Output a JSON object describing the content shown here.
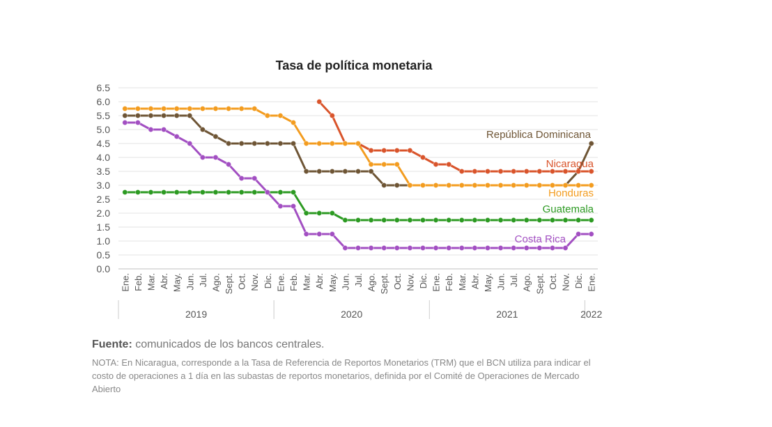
{
  "chart_data": {
    "type": "line",
    "title": "Tasa de política monetaria",
    "ylim": [
      0,
      6.5
    ],
    "yticks": [
      "0.0",
      "0.5",
      "1.0",
      "1.5",
      "2.0",
      "2.5",
      "3.0",
      "3.5",
      "4.0",
      "4.5",
      "5.0",
      "5.5",
      "6.0",
      "6.5"
    ],
    "grid": true,
    "categories": [
      "Ene.",
      "Feb.",
      "Mar.",
      "Abr.",
      "May.",
      "Jun.",
      "Jul.",
      "Ago.",
      "Sept.",
      "Oct.",
      "Nov.",
      "Dic.",
      "Ene.",
      "Feb.",
      "Mar.",
      "Abr.",
      "May.",
      "Jun.",
      "Jul.",
      "Ago.",
      "Sept.",
      "Oct.",
      "Nov.",
      "Dic.",
      "Ene.",
      "Feb.",
      "Mar.",
      "Abr.",
      "May.",
      "Jun.",
      "Jul.",
      "Ago.",
      "Sept.",
      "Oct.",
      "Nov.",
      "Dic.",
      "Ene."
    ],
    "years": [
      {
        "label": "2019",
        "start": 0,
        "end": 11
      },
      {
        "label": "2020",
        "start": 12,
        "end": 23
      },
      {
        "label": "2021",
        "start": 24,
        "end": 35
      },
      {
        "label": "2022",
        "start": 36,
        "end": 36
      }
    ],
    "series": [
      {
        "name": "República Dominicana",
        "color": "#6e5535",
        "values": [
          5.5,
          5.5,
          5.5,
          5.5,
          5.5,
          5.5,
          5.0,
          4.75,
          4.5,
          4.5,
          4.5,
          4.5,
          4.5,
          4.5,
          3.5,
          3.5,
          3.5,
          3.5,
          3.5,
          3.5,
          3.0,
          3.0,
          3.0,
          3.0,
          3.0,
          3.0,
          3.0,
          3.0,
          3.0,
          3.0,
          3.0,
          3.0,
          3.0,
          3.0,
          3.0,
          3.5,
          4.5
        ]
      },
      {
        "name": "Nicaragua",
        "color": "#d9542b",
        "values": [
          null,
          null,
          null,
          null,
          null,
          null,
          null,
          null,
          null,
          null,
          null,
          null,
          null,
          null,
          null,
          6.0,
          5.5,
          4.5,
          4.5,
          4.25,
          4.25,
          4.25,
          4.25,
          4.0,
          3.75,
          3.75,
          3.5,
          3.5,
          3.5,
          3.5,
          3.5,
          3.5,
          3.5,
          3.5,
          3.5,
          3.5,
          3.5
        ]
      },
      {
        "name": "Honduras",
        "color": "#f39c1f",
        "values": [
          5.75,
          5.75,
          5.75,
          5.75,
          5.75,
          5.75,
          5.75,
          5.75,
          5.75,
          5.75,
          5.75,
          5.5,
          5.5,
          5.25,
          4.5,
          4.5,
          4.5,
          4.5,
          4.5,
          3.75,
          3.75,
          3.75,
          3.0,
          3.0,
          3.0,
          3.0,
          3.0,
          3.0,
          3.0,
          3.0,
          3.0,
          3.0,
          3.0,
          3.0,
          3.0,
          3.0,
          3.0
        ]
      },
      {
        "name": "Guatemala",
        "color": "#2c9a22",
        "values": [
          2.75,
          2.75,
          2.75,
          2.75,
          2.75,
          2.75,
          2.75,
          2.75,
          2.75,
          2.75,
          2.75,
          2.75,
          2.75,
          2.75,
          2.0,
          2.0,
          2.0,
          1.75,
          1.75,
          1.75,
          1.75,
          1.75,
          1.75,
          1.75,
          1.75,
          1.75,
          1.75,
          1.75,
          1.75,
          1.75,
          1.75,
          1.75,
          1.75,
          1.75,
          1.75,
          1.75,
          1.75
        ]
      },
      {
        "name": "Costa Rica",
        "color": "#a24fc2",
        "values": [
          5.25,
          5.25,
          5.0,
          5.0,
          4.75,
          4.5,
          4.0,
          4.0,
          3.75,
          3.25,
          3.25,
          2.75,
          2.25,
          2.25,
          1.25,
          1.25,
          1.25,
          0.75,
          0.75,
          0.75,
          0.75,
          0.75,
          0.75,
          0.75,
          0.75,
          0.75,
          0.75,
          0.75,
          0.75,
          0.75,
          0.75,
          0.75,
          0.75,
          0.75,
          0.75,
          1.25,
          1.25
        ]
      }
    ]
  },
  "source": {
    "label": "Fuente:",
    "text": " comunicados de los bancos centrales.",
    "note": "NOTA: En Nicaragua, corresponde a la Tasa de Referencia de Reportos Monetarios (TRM) que el BCN utiliza para indicar el costo de operaciones a 1 día en las subastas de reportos monetarios, definida por el Comité de Operaciones de Mercado Abierto"
  }
}
